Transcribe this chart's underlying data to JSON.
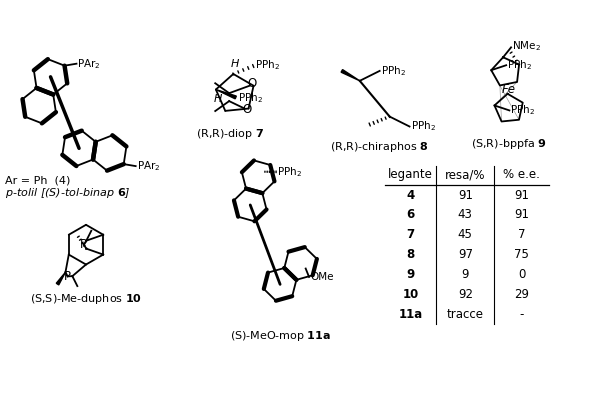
{
  "background_color": "#ffffff",
  "table": {
    "headers": [
      "legante",
      "resa/%",
      "% e.e."
    ],
    "rows": [
      [
        "4",
        "91",
        "91"
      ],
      [
        "6",
        "43",
        "91"
      ],
      [
        "7",
        "45",
        "7"
      ],
      [
        "8",
        "97",
        "75"
      ],
      [
        "9",
        "9",
        "0"
      ],
      [
        "10",
        "92",
        "29"
      ],
      [
        "11a",
        "tracce",
        "-"
      ]
    ]
  },
  "label_binap1": "Ar = Ph  (4)",
  "label_binap2": "p-tolil [(S)-tol-binap 6]",
  "label_diop": "(R,R)-diop 7",
  "label_chiraphos": "(R,R)-chiraphos 8",
  "label_bppfa": "(S,R)-bppfa 9",
  "label_duphos": "(S,S)-Me-duphos 10",
  "label_mop": "(S)-MeO-mop 11a"
}
